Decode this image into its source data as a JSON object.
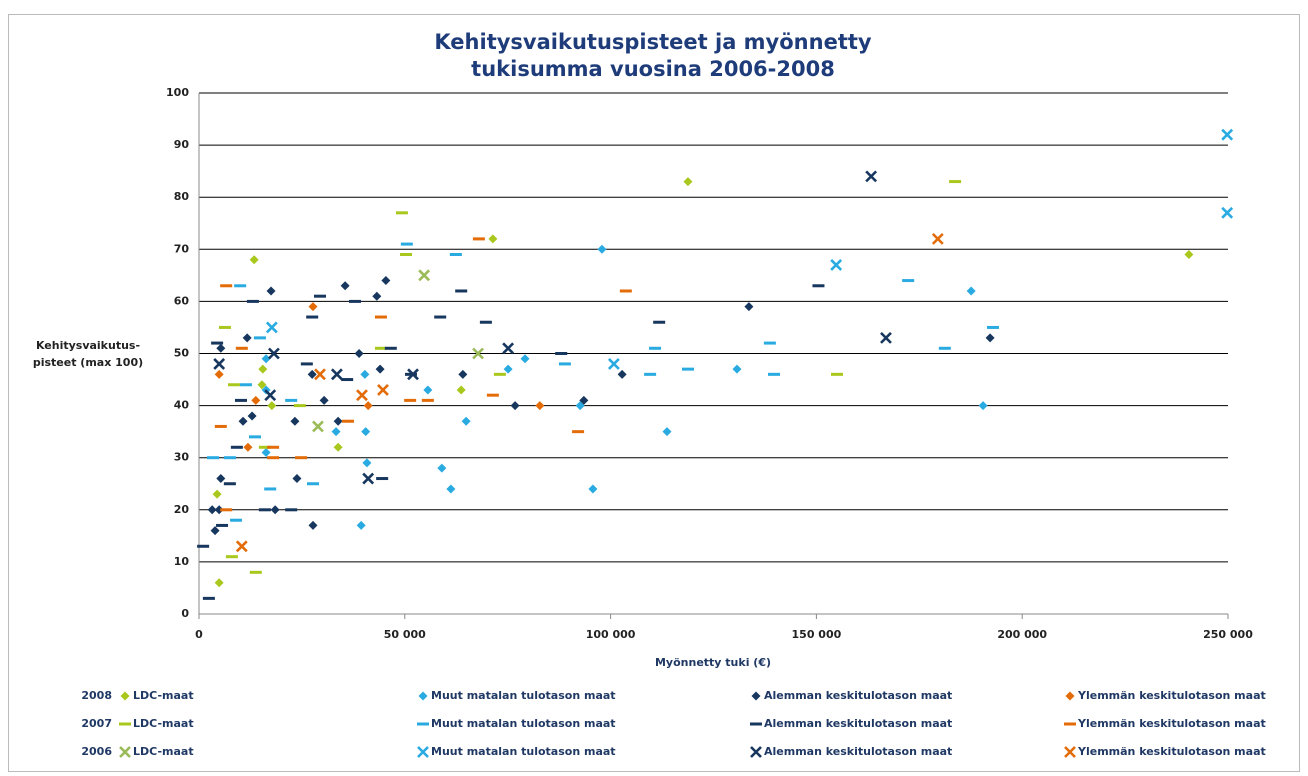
{
  "chart_data": {
    "type": "scatter",
    "title": [
      "Kehitysvaikutuspisteet ja myönnetty",
      "tukisumma vuosina 2006-2008"
    ],
    "xlabel": "Myönnetty tuki (€)",
    "ylabel": [
      "Kehitysvaikutus-",
      "pisteet (max 100)"
    ],
    "xlim": [
      0,
      250000
    ],
    "xticks": [
      0,
      {
        "value": 50000,
        "label": "50 000"
      },
      {
        "value": 100000,
        "label": "100 000"
      },
      {
        "value": 150000,
        "label": "150 000"
      },
      {
        "value": 200000,
        "label": "200 000"
      },
      {
        "value": 250000,
        "label": "250 000"
      }
    ],
    "ylim": [
      0,
      100
    ],
    "yticks": [
      0,
      10,
      20,
      30,
      40,
      50,
      60,
      70,
      80,
      90,
      100
    ],
    "grid": true,
    "legend_rows": [
      "2008",
      "2007",
      "2006"
    ],
    "series": [
      {
        "name": "LDC-maat",
        "color": "#a8c81e",
        "marker": "diamond",
        "x": [
          4900,
          4400,
          13400,
          15500,
          15300,
          17700,
          33800,
          63700,
          71400,
          118800,
          240500
        ],
        "values": [
          6,
          23,
          68,
          47,
          44,
          40,
          32,
          43,
          72,
          83,
          69
        ]
      },
      {
        "name": "Muut matalan tulotason maat",
        "color": "#29abe2",
        "marker": "diamond",
        "x": [
          16300,
          16300,
          16300,
          33300,
          40300,
          40500,
          40800,
          39400,
          55600,
          59000,
          61200,
          64900,
          75100,
          79200,
          92600,
          95700,
          97900,
          113700,
          130700,
          187600,
          190500
        ],
        "values": [
          43,
          31,
          49,
          35,
          46,
          35,
          29,
          17,
          43,
          28,
          24,
          37,
          47,
          49,
          40,
          24,
          70,
          35,
          47,
          62,
          40
        ]
      },
      {
        "name": "Alemman keskitulotason maat",
        "color": "#17375e",
        "marker": "diamond",
        "x": [
          3900,
          3200,
          4900,
          5300,
          5300,
          10700,
          11700,
          12900,
          17500,
          18500,
          23300,
          23800,
          27700,
          27500,
          30400,
          33800,
          35500,
          38900,
          43200,
          44000,
          45400,
          64100,
          76800,
          93500,
          102800,
          133600,
          192200
        ],
        "values": [
          16,
          20,
          20,
          26,
          51,
          37,
          53,
          38,
          62,
          20,
          37,
          26,
          17,
          46,
          41,
          37,
          63,
          50,
          61,
          47,
          64,
          46,
          40,
          41,
          46,
          59,
          53
        ]
      },
      {
        "name": "Ylemmän keskitulotason maat",
        "color": "#e36c09",
        "marker": "diamond",
        "x": [
          4900,
          11900,
          13800,
          27700,
          41100,
          82800
        ],
        "values": [
          46,
          32,
          41,
          59,
          40,
          40
        ]
      },
      {
        "name": "LDC-maat",
        "color": "#a8c81e",
        "marker": "dash",
        "x": [
          6300,
          8500,
          8000,
          13800,
          16000,
          24500,
          44200,
          49300,
          50300,
          73100,
          183700,
          155000
        ],
        "values": [
          55,
          44,
          11,
          8,
          32,
          40,
          51,
          77,
          69,
          46,
          83,
          46
        ]
      },
      {
        "name": "Muut matalan tulotason maat",
        "color": "#29abe2",
        "marker": "dash",
        "x": [
          3400,
          7500,
          10000,
          9000,
          11400,
          13600,
          14800,
          17300,
          22400,
          27700,
          50500,
          62400,
          88900,
          109600,
          110800,
          118800,
          138700,
          139700,
          172300,
          181200,
          192900
        ],
        "values": [
          30,
          30,
          63,
          18,
          44,
          34,
          53,
          24,
          41,
          25,
          71,
          69,
          48,
          46,
          51,
          47,
          52,
          46,
          64,
          51,
          55
        ]
      },
      {
        "name": "Alemman keskitulotason maat",
        "color": "#17375e",
        "marker": "dash",
        "x": [
          1000,
          2400,
          4400,
          5600,
          7500,
          9200,
          10200,
          13100,
          16000,
          22400,
          26200,
          27500,
          29400,
          37900,
          36000,
          44500,
          46600,
          51500,
          58600,
          63700,
          69700,
          88000,
          111800,
          150500
        ],
        "values": [
          13,
          3,
          52,
          17,
          25,
          32,
          41,
          60,
          20,
          20,
          48,
          57,
          61,
          60,
          45,
          26,
          51,
          46,
          57,
          62,
          56,
          50,
          56,
          63
        ]
      },
      {
        "name": "Ylemmän keskitulotason maat",
        "color": "#e36c09",
        "marker": "dash",
        "x": [
          5300,
          6600,
          6600,
          10400,
          18000,
          18000,
          24800,
          36200,
          44200,
          51300,
          55600,
          68000,
          71400,
          92100,
          103700
        ],
        "values": [
          36,
          63,
          20,
          51,
          32,
          30,
          30,
          37,
          57,
          41,
          41,
          72,
          42,
          35,
          62
        ]
      },
      {
        "name": "LDC-maat",
        "color": "#9bbb59",
        "marker": "x",
        "x": [
          28900,
          54700,
          67800
        ],
        "values": [
          36,
          65,
          50
        ]
      },
      {
        "name": "Muut matalan tulotason maat",
        "color": "#29abe2",
        "marker": "x",
        "x": [
          17700,
          100800,
          154800,
          249800,
          249800
        ],
        "values": [
          55,
          48,
          67,
          92,
          77
        ]
      },
      {
        "name": "Alemman keskitulotason maat",
        "color": "#17375e",
        "marker": "x",
        "x": [
          4900,
          17300,
          18200,
          33500,
          41100,
          52000,
          75100,
          163300,
          166900
        ],
        "values": [
          48,
          42,
          50,
          46,
          26,
          46,
          51,
          84,
          53
        ]
      },
      {
        "name": "Ylemmän keskitulotason maat",
        "color": "#e36c09",
        "marker": "x",
        "x": [
          10400,
          29400,
          39600,
          44700,
          179500
        ],
        "values": [
          13,
          46,
          42,
          43,
          72
        ]
      }
    ]
  }
}
